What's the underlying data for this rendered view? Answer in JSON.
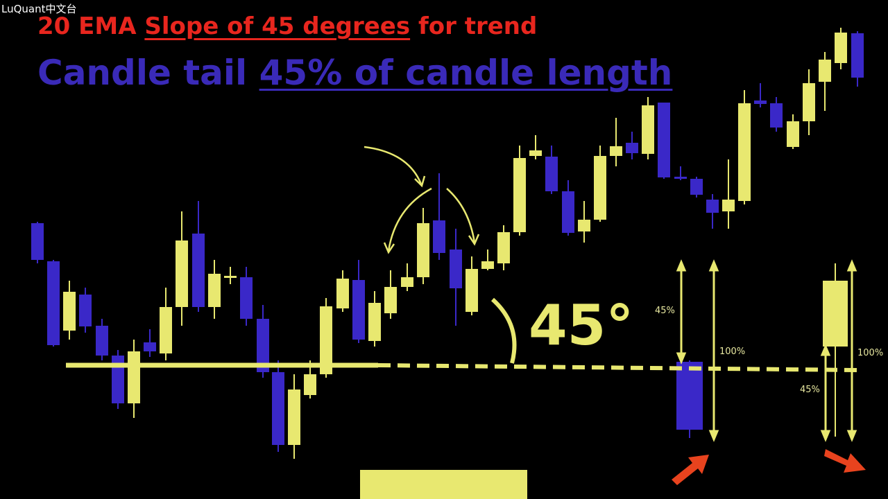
{
  "watermark": "LuQuant中文台",
  "headline": {
    "line1": {
      "lead": "20 EMA",
      "underlined": "Slope of 45 degrees",
      "tail": "for trend"
    },
    "line2": {
      "lead": "Candle tail",
      "underlined": "45% of candle length"
    }
  },
  "angle_label": "45°",
  "blue_candle": {
    "tail_label": "45%",
    "length_label": "100%"
  },
  "yellow_candle": {
    "tail_label": "45%",
    "length_label": "100%"
  }
}
